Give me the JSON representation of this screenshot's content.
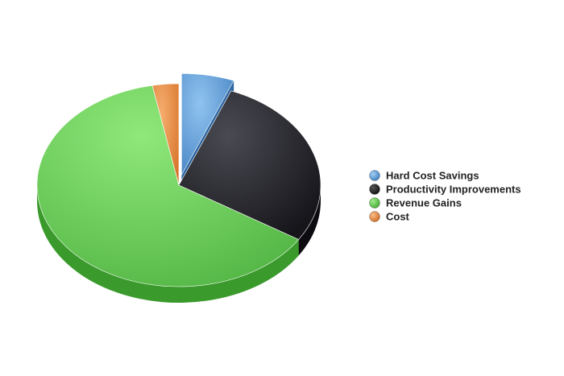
{
  "chart_data": {
    "type": "pie",
    "title": "",
    "legend_position": "right",
    "slices": [
      {
        "name": "Hard Cost Savings",
        "value": 6,
        "color": "#5b9bd5",
        "exploded": true
      },
      {
        "name": "Productivity Improvements",
        "value": 28,
        "color": "#2a2a30",
        "exploded": false
      },
      {
        "name": "Revenue Gains",
        "value": 63,
        "color": "#6fcf5e",
        "exploded": false
      },
      {
        "name": "Cost",
        "value": 3,
        "color": "#e8904a",
        "exploded": false
      }
    ]
  }
}
